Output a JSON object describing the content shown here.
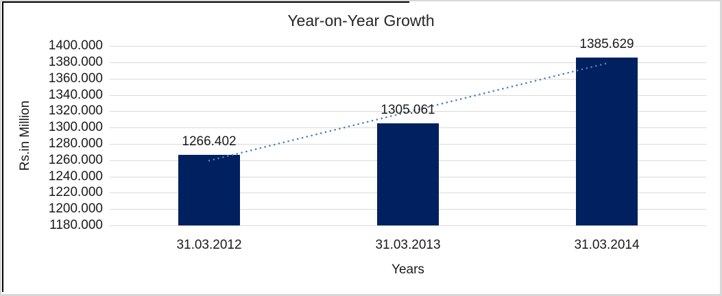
{
  "chart_data": {
    "type": "bar",
    "title": "Year-on-Year Growth",
    "xlabel": "Years",
    "ylabel": "Rs.in Million",
    "categories": [
      "31.03.2012",
      "31.03.2013",
      "31.03.2014"
    ],
    "values": [
      1266.402,
      1305.061,
      1385.629
    ],
    "data_labels": [
      "1266.402",
      "1305.061",
      "1385.629"
    ],
    "ylim": [
      1180,
      1400
    ],
    "ytick_step": 20,
    "ytick_labels": [
      "1400.000",
      "1380.000",
      "1360.000",
      "1340.000",
      "1320.000",
      "1300.000",
      "1280.000",
      "1260.000",
      "1240.000",
      "1220.000",
      "1200.000",
      "1180.000"
    ],
    "grid": true,
    "legend": "none",
    "trendline": {
      "type": "linear",
      "style": "dotted"
    },
    "colors": {
      "bar": "#002060",
      "trendline": "#4f81bd",
      "gridline": "#d9d9d9",
      "text": "#1a1a1a",
      "title_text": "#262626",
      "frame_gray": "#d8d8d8",
      "frame_black": "#000000",
      "background": "#ffffff"
    }
  }
}
